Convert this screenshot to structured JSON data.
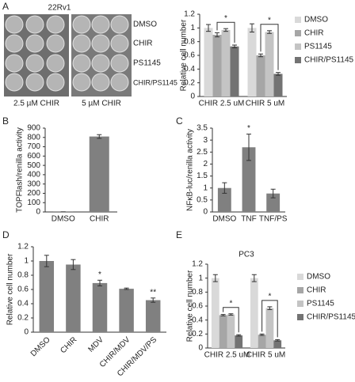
{
  "plate_image": {
    "panel": "A",
    "title": "22Rv1",
    "rows": [
      "DMSO",
      "CHIR",
      "PS1145",
      "CHIR/PS1145"
    ],
    "columns": [
      "2.5 µM CHIR",
      "5 µM CHIR"
    ]
  },
  "chart_data": [
    {
      "type": "bar",
      "y_label": "Relative cell number",
      "categories": [
        "CHIR 2.5 uM",
        "CHIR 5 uM"
      ],
      "series": [
        {
          "name": "DMSO",
          "color": "#d9d9d9",
          "values": [
            1.0,
            1.0
          ],
          "errors": [
            0.05,
            0.06
          ]
        },
        {
          "name": "CHIR",
          "color": "#a6a6a6",
          "values": [
            0.9,
            0.6
          ],
          "errors": [
            0.03,
            0.02
          ]
        },
        {
          "name": "PS1145",
          "color": "#c4c4c4",
          "values": [
            0.97,
            0.94
          ],
          "errors": [
            0.02,
            0.02
          ]
        },
        {
          "name": "CHIR/PS1145",
          "color": "#737373",
          "values": [
            0.73,
            0.33
          ],
          "errors": [
            0.02,
            0.02
          ]
        }
      ],
      "significance": [
        "*",
        "*"
      ],
      "ylim": [
        0,
        1.2
      ],
      "yticks": [
        0,
        0.2,
        0.4,
        0.6,
        0.8,
        1,
        1.2
      ],
      "legend": "right"
    },
    {
      "type": "bar",
      "panel": "B",
      "y_label": "TOPFlash/renilla activity",
      "categories": [
        "DMSO",
        "CHIR"
      ],
      "values": [
        1,
        810
      ],
      "errors": [
        0,
        20
      ],
      "color": "#808080",
      "ylim": [
        0,
        900
      ],
      "yticks": [
        0,
        100,
        200,
        300,
        400,
        500,
        600,
        700,
        800,
        900
      ]
    },
    {
      "type": "bar",
      "panel": "C",
      "y_label": "NFκB-luc/renilla activity",
      "categories": [
        "DMSO",
        "TNF",
        "TNF/PS"
      ],
      "values": [
        1.0,
        2.7,
        0.77
      ],
      "errors": [
        0.22,
        0.55,
        0.18
      ],
      "color": "#808080",
      "annotations": [
        null,
        "*",
        null
      ],
      "ylim": [
        0,
        3.5
      ],
      "yticks": [
        0,
        0.5,
        1,
        1.5,
        2,
        2.5,
        3,
        3.5
      ]
    },
    {
      "type": "bar",
      "panel": "D",
      "y_label": "Relative cell number",
      "categories": [
        "DMSO",
        "CHIR",
        "MDV",
        "CHIR/MDV",
        "CHIR/MDV/PS"
      ],
      "values": [
        1.0,
        0.95,
        0.69,
        0.61,
        0.45
      ],
      "errors": [
        0.08,
        0.07,
        0.04,
        0.01,
        0.03
      ],
      "color": "#808080",
      "annotations": [
        null,
        null,
        "*",
        null,
        "**"
      ],
      "ylim": [
        0,
        1.2
      ],
      "yticks": [
        0,
        0.2,
        0.4,
        0.6,
        0.8,
        1,
        1.2
      ],
      "rotate_labels": true
    },
    {
      "type": "bar",
      "panel": "E",
      "title": "PC3",
      "y_label": "Relative cell number",
      "categories": [
        "CHIR 2.5 uM",
        "CHIR 5 uM"
      ],
      "series": [
        {
          "name": "DMSO",
          "color": "#d9d9d9",
          "values": [
            1.0,
            1.0
          ],
          "errors": [
            0.05,
            0.05
          ]
        },
        {
          "name": "CHIR",
          "color": "#a6a6a6",
          "values": [
            0.47,
            0.19
          ],
          "errors": [
            0.01,
            0.01
          ]
        },
        {
          "name": "PS1145",
          "color": "#c4c4c4",
          "values": [
            0.48,
            0.57
          ],
          "errors": [
            0.01,
            0.02
          ]
        },
        {
          "name": "CHIR/PS1145",
          "color": "#737373",
          "values": [
            0.18,
            0.11
          ],
          "errors": [
            0.01,
            0.01
          ]
        }
      ],
      "significance": [
        "*",
        "*"
      ],
      "ylim": [
        0,
        1.2
      ],
      "yticks": [
        0,
        0.2,
        0.4,
        0.6,
        0.8,
        1,
        1.2
      ],
      "legend": "right"
    }
  ]
}
